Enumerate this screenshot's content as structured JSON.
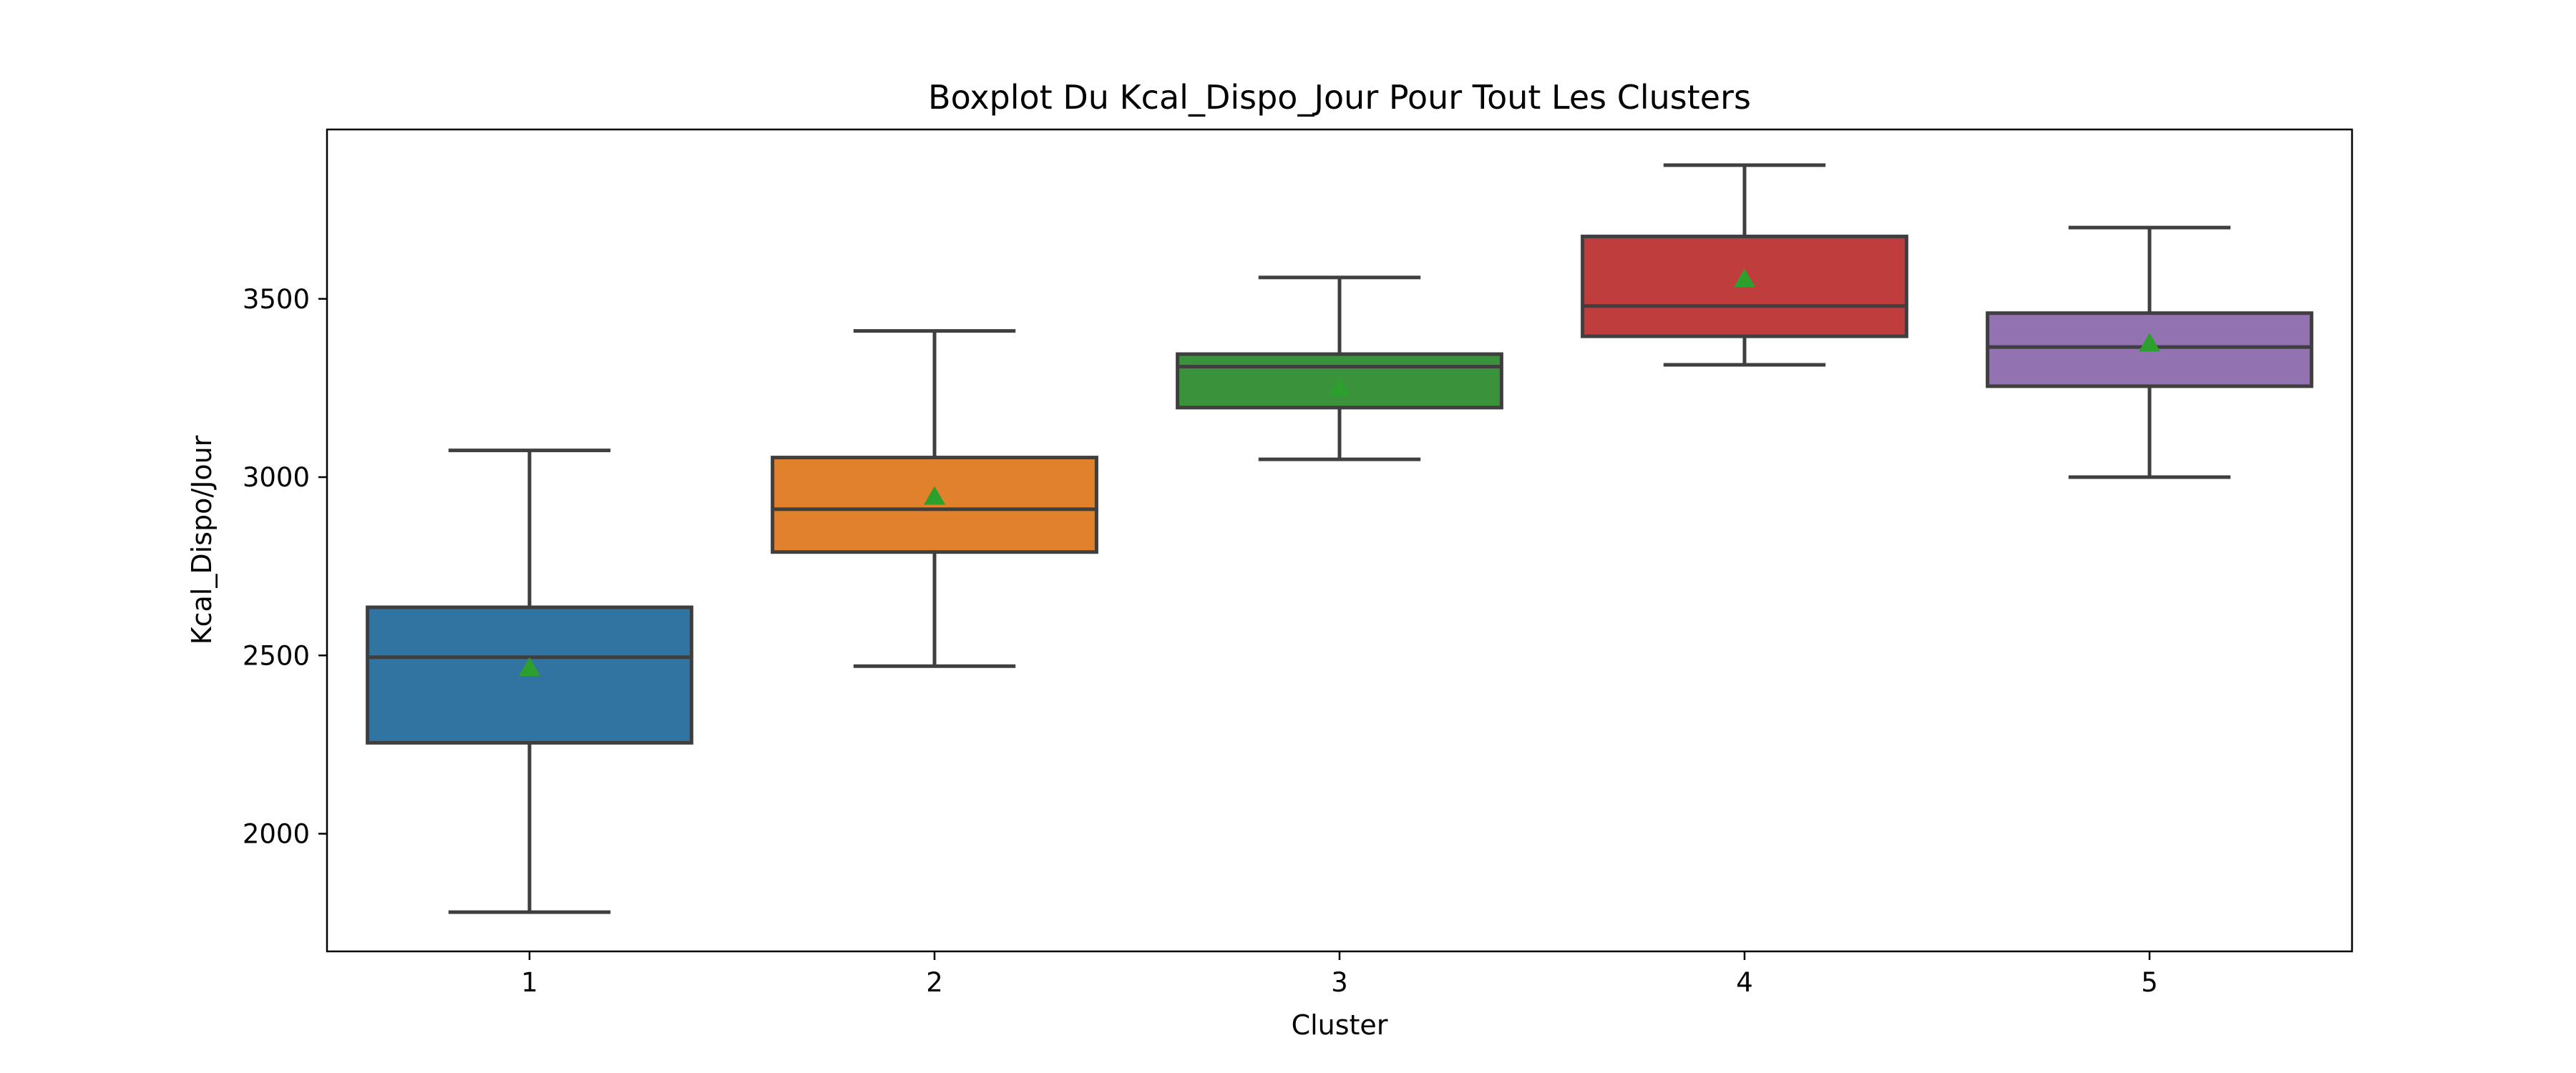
{
  "chart_data": {
    "type": "box",
    "title": "Boxplot Du Kcal_Dispo_Jour Pour Tout Les Clusters",
    "xlabel": "Cluster",
    "ylabel": "Kcal_Dispo/Jour",
    "categories": [
      "1",
      "2",
      "3",
      "4",
      "5"
    ],
    "y_ticks": [
      2000,
      2500,
      3000,
      3500
    ],
    "ylim": [
      1670,
      3975
    ],
    "grid": false,
    "legend": "none",
    "boxes": [
      {
        "category": "1",
        "whisker_low": 1780,
        "q1": 2255,
        "median": 2495,
        "q3": 2635,
        "whisker_high": 3075,
        "mean": 2465,
        "color": "#3274a1"
      },
      {
        "category": "2",
        "whisker_low": 2470,
        "q1": 2790,
        "median": 2910,
        "q3": 3055,
        "whisker_high": 3410,
        "mean": 2945,
        "color": "#e1812c"
      },
      {
        "category": "3",
        "whisker_low": 3050,
        "q1": 3195,
        "median": 3310,
        "q3": 3345,
        "whisker_high": 3560,
        "mean": 3250,
        "color": "#3a923a"
      },
      {
        "category": "4",
        "whisker_low": 3315,
        "q1": 3395,
        "median": 3480,
        "q3": 3675,
        "whisker_high": 3875,
        "mean": 3555,
        "color": "#c03d3e"
      },
      {
        "category": "5",
        "whisker_low": 3000,
        "q1": 3255,
        "median": 3365,
        "q3": 3460,
        "whisker_high": 3700,
        "mean": 3375,
        "color": "#9372b2"
      }
    ],
    "mean_marker_color": "#2ca02c",
    "line_color": "#3f3f3f"
  }
}
